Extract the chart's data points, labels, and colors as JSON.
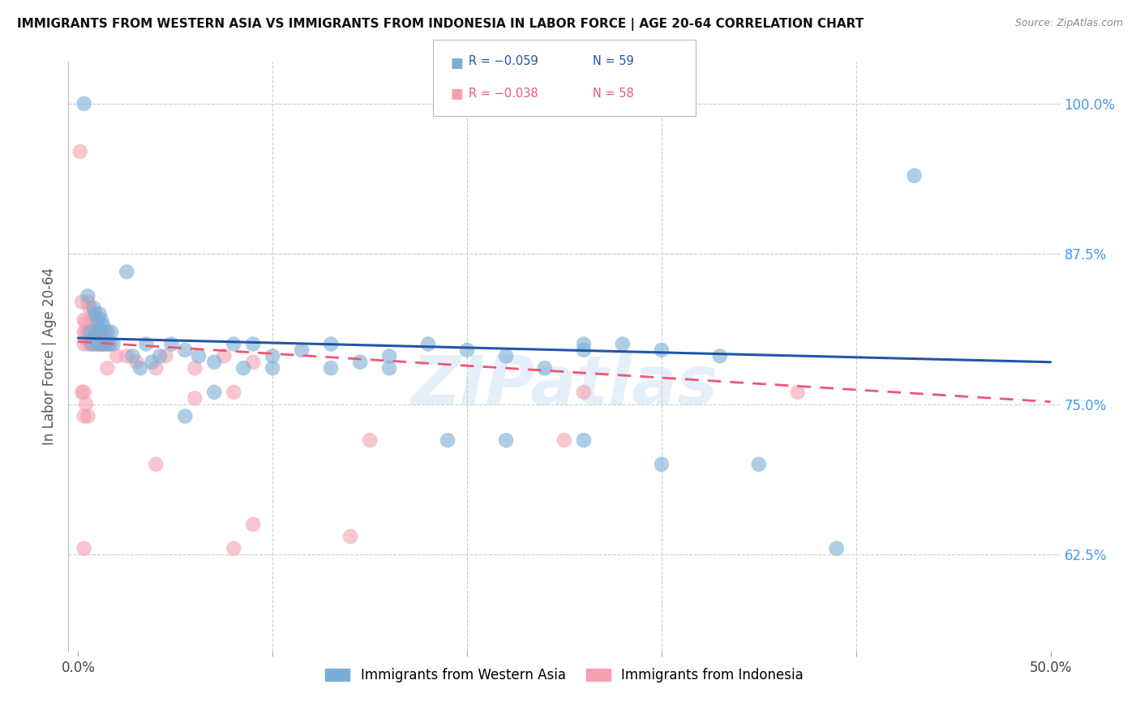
{
  "title": "IMMIGRANTS FROM WESTERN ASIA VS IMMIGRANTS FROM INDONESIA IN LABOR FORCE | AGE 20-64 CORRELATION CHART",
  "source": "Source: ZipAtlas.com",
  "ylabel": "In Labor Force | Age 20-64",
  "xlim": [
    -0.005,
    0.505
  ],
  "ylim": [
    0.545,
    1.035
  ],
  "xticks": [
    0.0,
    0.1,
    0.2,
    0.3,
    0.4,
    0.5
  ],
  "xticklabels": [
    "0.0%",
    "",
    "",
    "",
    "",
    "50.0%"
  ],
  "yticks": [
    0.625,
    0.75,
    0.875,
    1.0
  ],
  "yticklabels": [
    "62.5%",
    "75.0%",
    "87.5%",
    "100.0%"
  ],
  "legend_blue_label": "Immigrants from Western Asia",
  "legend_pink_label": "Immigrants from Indonesia",
  "legend_r_blue": "R = −0.059",
  "legend_n_blue": "N = 59",
  "legend_r_pink": "R = −0.038",
  "legend_n_pink": "N = 58",
  "blue_color": "#7aaed6",
  "pink_color": "#f4a0b0",
  "trendline_blue_color": "#2255aa",
  "trendline_pink_color": "#ee5577",
  "watermark": "ZIPatlas",
  "blue_scatter_x": [
    0.003,
    0.005,
    0.006,
    0.007,
    0.008,
    0.009,
    0.01,
    0.011,
    0.012,
    0.013,
    0.014,
    0.015,
    0.016,
    0.017,
    0.018,
    0.008,
    0.009,
    0.01,
    0.011,
    0.012,
    0.025,
    0.028,
    0.032,
    0.035,
    0.038,
    0.042,
    0.048,
    0.055,
    0.062,
    0.07,
    0.08,
    0.09,
    0.1,
    0.115,
    0.13,
    0.145,
    0.16,
    0.18,
    0.2,
    0.22,
    0.24,
    0.26,
    0.28,
    0.3,
    0.33,
    0.055,
    0.07,
    0.085,
    0.1,
    0.13,
    0.16,
    0.19,
    0.22,
    0.26,
    0.3,
    0.35,
    0.39,
    0.43,
    0.26
  ],
  "blue_scatter_y": [
    1.0,
    0.84,
    0.81,
    0.8,
    0.805,
    0.808,
    0.8,
    0.812,
    0.8,
    0.815,
    0.8,
    0.81,
    0.8,
    0.81,
    0.8,
    0.83,
    0.825,
    0.82,
    0.825,
    0.82,
    0.86,
    0.79,
    0.78,
    0.8,
    0.785,
    0.79,
    0.8,
    0.795,
    0.79,
    0.785,
    0.8,
    0.8,
    0.79,
    0.795,
    0.8,
    0.785,
    0.79,
    0.8,
    0.795,
    0.79,
    0.78,
    0.795,
    0.8,
    0.795,
    0.79,
    0.74,
    0.76,
    0.78,
    0.78,
    0.78,
    0.78,
    0.72,
    0.72,
    0.72,
    0.7,
    0.7,
    0.63,
    0.94,
    0.8
  ],
  "pink_scatter_x": [
    0.001,
    0.002,
    0.003,
    0.004,
    0.005,
    0.006,
    0.007,
    0.008,
    0.009,
    0.01,
    0.011,
    0.012,
    0.013,
    0.005,
    0.006,
    0.007,
    0.008,
    0.009,
    0.003,
    0.004,
    0.003,
    0.004,
    0.005,
    0.006,
    0.008,
    0.009,
    0.01,
    0.011,
    0.012,
    0.013,
    0.014,
    0.015,
    0.016,
    0.03,
    0.045,
    0.06,
    0.075,
    0.09,
    0.025,
    0.04,
    0.02,
    0.015,
    0.003,
    0.004,
    0.002,
    0.003,
    0.005,
    0.06,
    0.08,
    0.26,
    0.37,
    0.25,
    0.15,
    0.04,
    0.09,
    0.14,
    0.08,
    0.003
  ],
  "pink_scatter_y": [
    0.96,
    0.835,
    0.8,
    0.81,
    0.8,
    0.805,
    0.8,
    0.8,
    0.808,
    0.8,
    0.808,
    0.8,
    0.8,
    0.835,
    0.83,
    0.82,
    0.825,
    0.815,
    0.82,
    0.818,
    0.81,
    0.805,
    0.81,
    0.808,
    0.81,
    0.8,
    0.808,
    0.81,
    0.8,
    0.808,
    0.81,
    0.8,
    0.8,
    0.785,
    0.79,
    0.78,
    0.79,
    0.785,
    0.79,
    0.78,
    0.79,
    0.78,
    0.76,
    0.75,
    0.76,
    0.74,
    0.74,
    0.755,
    0.76,
    0.76,
    0.76,
    0.72,
    0.72,
    0.7,
    0.65,
    0.64,
    0.63,
    0.63
  ],
  "blue_trend_x0": 0.0,
  "blue_trend_x1": 0.5,
  "blue_trend_y0": 0.805,
  "blue_trend_y1": 0.785,
  "pink_trend_x0": 0.0,
  "pink_trend_x1": 0.5,
  "pink_trend_y0": 0.802,
  "pink_trend_y1": 0.752,
  "grid_color": "#CCCCCC",
  "background_color": "#FFFFFF",
  "tick_color": "#4499EE",
  "yaxis_color": "#4499EE"
}
